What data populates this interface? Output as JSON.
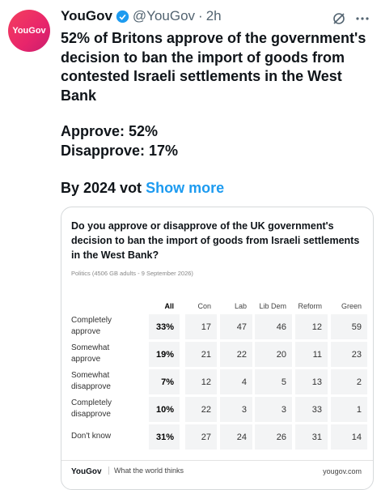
{
  "tweet": {
    "avatar": "YouGov",
    "author": "YouGov",
    "handle": "@YouGov",
    "separator": "·",
    "time": "2h",
    "lines": [
      "52% of Britons approve of the government's",
      "decision to ban the import of goods from",
      "contested Israeli settlements in the West",
      "Bank"
    ],
    "stats": [
      "Approve: 52%",
      "Disapprove: 17%"
    ],
    "truncated": "By 2024 vot",
    "show_more": "Show more"
  },
  "card": {
    "title": "Do you approve or disapprove of the UK government's decision to ban the import of goods from Israeli settlements in the West Bank?",
    "subtitle": "Politics (4506 GB adults - 9 September 2026)",
    "table": {
      "columns": [
        "All",
        "Con",
        "Lab",
        "Lib Dem",
        "Reform",
        "Green"
      ],
      "rows": [
        {
          "label": "Completely approve",
          "cells": [
            "33%",
            "17",
            "47",
            "46",
            "12",
            "59"
          ]
        },
        {
          "label": "Somewhat approve",
          "cells": [
            "19%",
            "21",
            "22",
            "20",
            "11",
            "23"
          ]
        },
        {
          "label": "Somewhat disapprove",
          "cells": [
            "7%",
            "12",
            "4",
            "5",
            "13",
            "2"
          ]
        },
        {
          "label": "Completely disapprove",
          "cells": [
            "10%",
            "22",
            "3",
            "3",
            "33",
            "1"
          ]
        },
        {
          "label": "Don't know",
          "cells": [
            "31%",
            "27",
            "24",
            "26",
            "31",
            "14"
          ]
        }
      ]
    },
    "footer": {
      "brand": "YouGov",
      "tagline": "What the world thinks",
      "url": "yougov.com"
    }
  }
}
